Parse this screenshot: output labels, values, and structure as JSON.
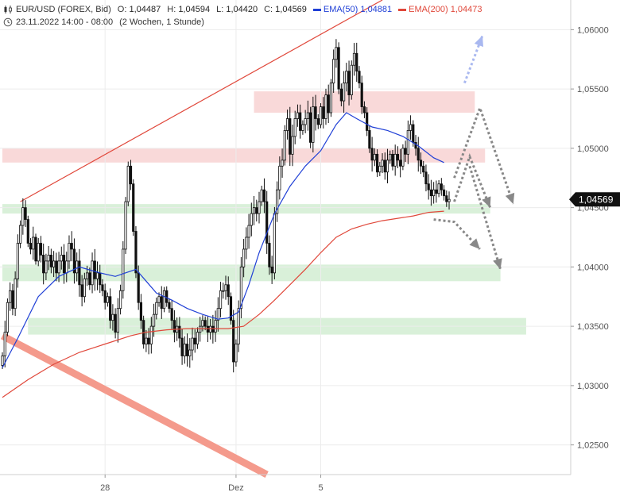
{
  "legend": {
    "symbol": "EUR/USD (FOREX, Bid)",
    "open_label": "O:",
    "open": "1,04487",
    "high_label": "H:",
    "high": "1,04594",
    "low_label": "L:",
    "low": "1,04420",
    "close_label": "C:",
    "close": "1,04569",
    "ema50_label": "EMA(50)",
    "ema50_value": "1,04881",
    "ema50_color": "#1f3fd6",
    "ema200_label": "EMA(200)",
    "ema200_value": "1,04473",
    "ema200_color": "#e0473a",
    "timestamp": "23.11.2022 14:00 - 08:00",
    "period": "(2 Wochen, 1 Stunde)",
    "icons": [
      "candlestick-icon",
      "clock-icon"
    ]
  },
  "chart_data": {
    "type": "candlestick",
    "ylim": [
      1.0225,
      1.0625
    ],
    "y_ticks": [
      {
        "value": 1.06,
        "label": "1,06000"
      },
      {
        "value": 1.055,
        "label": "1,05500"
      },
      {
        "value": 1.05,
        "label": "1,05000"
      },
      {
        "value": 1.045,
        "label": "1,04500"
      },
      {
        "value": 1.04,
        "label": "1,04000"
      },
      {
        "value": 1.035,
        "label": "1,03500"
      },
      {
        "value": 1.03,
        "label": "1,03000"
      },
      {
        "value": 1.025,
        "label": "1,02500"
      }
    ],
    "x_ticks": [
      {
        "index": 40,
        "label": "28"
      },
      {
        "index": 91,
        "label": "Dez"
      },
      {
        "index": 124,
        "label": "5"
      }
    ],
    "last_price": {
      "value": 1.04569,
      "label": "1,04569"
    },
    "closes": [
      1.0325,
      1.0345,
      1.037,
      1.038,
      1.0365,
      1.039,
      1.042,
      1.0435,
      1.045,
      1.044,
      1.042,
      1.0415,
      1.0425,
      1.0405,
      1.042,
      1.041,
      1.0395,
      1.0405,
      1.041,
      1.04,
      1.0405,
      1.0395,
      1.0405,
      1.041,
      1.0395,
      1.0405,
      1.042,
      1.0415,
      1.0395,
      1.0405,
      1.0385,
      1.0375,
      1.039,
      1.0395,
      1.0385,
      1.0405,
      1.039,
      1.0395,
      1.0385,
      1.038,
      1.037,
      1.0375,
      1.0355,
      1.036,
      1.0345,
      1.0365,
      1.038,
      1.0415,
      1.0455,
      1.0485,
      1.047,
      1.043,
      1.0395,
      1.037,
      1.0355,
      1.0335,
      1.034,
      1.0335,
      1.035,
      1.036,
      1.037,
      1.0375,
      1.0365,
      1.038,
      1.037,
      1.0365,
      1.0355,
      1.0345,
      1.035,
      1.034,
      1.0325,
      1.0335,
      1.0325,
      1.033,
      1.034,
      1.0335,
      1.0345,
      1.035,
      1.0355,
      1.035,
      1.0345,
      1.035,
      1.0345,
      1.0355,
      1.0365,
      1.038,
      1.038,
      1.0385,
      1.0375,
      1.0355,
      1.032,
      1.0335,
      1.0365,
      1.04,
      1.0415,
      1.0425,
      1.0435,
      1.0445,
      1.045,
      1.0445,
      1.0455,
      1.0465,
      1.0455,
      1.042,
      1.04,
      1.0395,
      1.0445,
      1.0465,
      1.0485,
      1.049,
      1.0515,
      1.0525,
      1.0495,
      1.051,
      1.0525,
      1.053,
      1.0515,
      1.052,
      1.0525,
      1.053,
      1.0505,
      1.0535,
      1.0525,
      1.052,
      1.0535,
      1.0525,
      1.0545,
      1.053,
      1.0555,
      1.0575,
      1.0585,
      1.055,
      1.054,
      1.0555,
      1.0565,
      1.0545,
      1.057,
      1.058,
      1.0565,
      1.0555,
      1.0535,
      1.053,
      1.0515,
      1.05,
      1.049,
      1.0495,
      1.048,
      1.0485,
      1.049,
      1.048,
      1.049,
      1.0495,
      1.0485,
      1.0495,
      1.049,
      1.0485,
      1.05,
      1.0495,
      1.0515,
      1.052,
      1.0505,
      1.05,
      1.049,
      1.0485,
      1.048,
      1.047,
      1.0465,
      1.046,
      1.0465,
      1.0462,
      1.047,
      1.0465,
      1.046,
      1.0455,
      1.0457
    ],
    "series": [
      {
        "name": "EMA(50)",
        "color": "#1f3fd6",
        "points": [
          [
            0,
            1.0315
          ],
          [
            6,
            1.034
          ],
          [
            14,
            1.0375
          ],
          [
            22,
            1.0392
          ],
          [
            30,
            1.04
          ],
          [
            38,
            1.0395
          ],
          [
            44,
            1.0392
          ],
          [
            48,
            1.0395
          ],
          [
            52,
            1.0398
          ],
          [
            56,
            1.0388
          ],
          [
            60,
            1.0378
          ],
          [
            66,
            1.0372
          ],
          [
            72,
            1.0365
          ],
          [
            78,
            1.036
          ],
          [
            84,
            1.0356
          ],
          [
            88,
            1.0357
          ],
          [
            92,
            1.0362
          ],
          [
            96,
            1.0385
          ],
          [
            100,
            1.0412
          ],
          [
            106,
            1.0445
          ],
          [
            112,
            1.0468
          ],
          [
            118,
            1.0485
          ],
          [
            124,
            1.0498
          ],
          [
            130,
            1.052
          ],
          [
            134,
            1.053
          ],
          [
            138,
            1.0525
          ],
          [
            144,
            1.0518
          ],
          [
            150,
            1.0515
          ],
          [
            156,
            1.051
          ],
          [
            162,
            1.0502
          ],
          [
            168,
            1.0492
          ],
          [
            172,
            1.0488
          ]
        ]
      },
      {
        "name": "EMA(200)",
        "color": "#e0473a",
        "points": [
          [
            0,
            1.029
          ],
          [
            10,
            1.0305
          ],
          [
            20,
            1.0318
          ],
          [
            30,
            1.0328
          ],
          [
            40,
            1.0335
          ],
          [
            50,
            1.0342
          ],
          [
            56,
            1.0345
          ],
          [
            64,
            1.0347
          ],
          [
            72,
            1.0348
          ],
          [
            80,
            1.0348
          ],
          [
            88,
            1.0348
          ],
          [
            94,
            1.035
          ],
          [
            100,
            1.036
          ],
          [
            106,
            1.0372
          ],
          [
            112,
            1.0385
          ],
          [
            118,
            1.0398
          ],
          [
            124,
            1.0412
          ],
          [
            130,
            1.0425
          ],
          [
            136,
            1.0432
          ],
          [
            142,
            1.0436
          ],
          [
            148,
            1.0439
          ],
          [
            154,
            1.0441
          ],
          [
            160,
            1.0443
          ],
          [
            166,
            1.0446
          ],
          [
            172,
            1.0447
          ]
        ]
      }
    ],
    "zones": [
      {
        "kind": "resistance",
        "y1": 1.053,
        "y2": 1.0548,
        "from": 98,
        "to": 184
      },
      {
        "kind": "resistance",
        "y1": 1.0488,
        "y2": 1.05,
        "from": 0,
        "to": 188
      },
      {
        "kind": "support",
        "y1": 1.0445,
        "y2": 1.0453,
        "from": 0,
        "to": 190
      },
      {
        "kind": "support",
        "y1": 1.0388,
        "y2": 1.0402,
        "from": 0,
        "to": 194
      },
      {
        "kind": "support",
        "y1": 1.0343,
        "y2": 1.0357,
        "from": 10,
        "to": 204
      }
    ],
    "trendlines": [
      {
        "kind": "upper",
        "from": [
          7,
          1.0455
        ],
        "to": [
          148,
          1.0625
        ],
        "color": "#e0473a"
      },
      {
        "kind": "lower",
        "from": [
          0,
          1.0342
        ],
        "to": [
          103,
          1.0225
        ],
        "color": "#f49a8c"
      }
    ],
    "scenarios": [
      {
        "kind": "bullish",
        "points": [
          [
            180,
            1.0555
          ],
          [
            187,
            1.0595
          ]
        ],
        "color": "#a9b8f0"
      },
      {
        "kind": "up-down",
        "points": [
          [
            176,
            1.0455
          ],
          [
            182,
            1.0493
          ],
          [
            190,
            1.045
          ]
        ],
        "color": "#888888"
      },
      {
        "kind": "up-down",
        "points": [
          [
            176,
            1.0475
          ],
          [
            186,
            1.0534
          ],
          [
            199,
            1.0453
          ]
        ],
        "color": "#888888"
      },
      {
        "kind": "down",
        "points": [
          [
            168,
            1.044
          ],
          [
            176,
            1.0438
          ],
          [
            186,
            1.0415
          ]
        ],
        "color": "#888888"
      },
      {
        "kind": "down",
        "points": [
          [
            182,
            1.0485
          ],
          [
            194,
            1.0398
          ]
        ],
        "color": "#888888"
      }
    ]
  }
}
